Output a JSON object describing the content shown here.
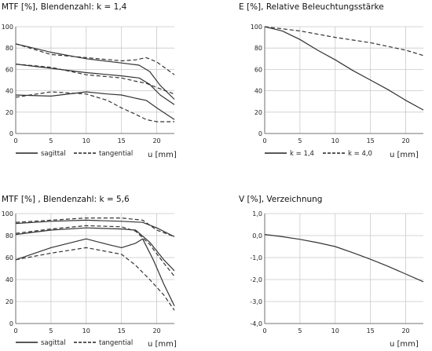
{
  "chart_data": [
    {
      "type": "line",
      "title": "MTF [%], Blendenzahl: k = 1,4",
      "xlabel": "u [mm]",
      "xlim": [
        0,
        22.5
      ],
      "ylim": [
        0,
        100
      ],
      "xticks": [
        "0",
        "5",
        "10",
        "15",
        "20"
      ],
      "yticks": [
        "0",
        "20",
        "40",
        "60",
        "80",
        "100"
      ],
      "legend": [
        {
          "label": "sagittal",
          "style": "solid"
        },
        {
          "label": "tangential",
          "style": "dashed"
        }
      ],
      "series": [
        {
          "style": "solid",
          "x": [
            0,
            5,
            10,
            15,
            17.5,
            19,
            20.5,
            22.5
          ],
          "y": [
            84,
            76,
            70,
            66,
            64,
            58,
            45,
            32
          ]
        },
        {
          "style": "dashed",
          "x": [
            0,
            5,
            10,
            15,
            17,
            18.5,
            20,
            22.5
          ],
          "y": [
            84,
            74,
            71,
            68,
            69,
            71,
            67,
            55
          ]
        },
        {
          "style": "solid",
          "x": [
            0,
            5,
            10,
            15,
            17.5,
            19,
            20.5,
            22.5
          ],
          "y": [
            65,
            61,
            57,
            54,
            52,
            46,
            36,
            27
          ]
        },
        {
          "style": "dashed",
          "x": [
            0,
            5,
            10,
            15,
            17,
            18.5,
            20,
            22.5
          ],
          "y": [
            65,
            62,
            55,
            52,
            49,
            47,
            43,
            37
          ]
        },
        {
          "style": "solid",
          "x": [
            0,
            5,
            10,
            13,
            15,
            17,
            18.5,
            20,
            22.5
          ],
          "y": [
            36,
            35,
            39,
            37,
            36,
            33,
            31,
            24,
            13
          ]
        },
        {
          "style": "dashed",
          "x": [
            0,
            5,
            10,
            13,
            15,
            17,
            18.5,
            20,
            22.5
          ],
          "y": [
            34,
            39,
            37,
            31,
            24,
            18,
            13,
            11,
            11
          ]
        }
      ]
    },
    {
      "type": "line",
      "title": "E [%], Relative Beleuchtungsstärke",
      "xlabel": "u [mm]",
      "xlim": [
        0,
        22.5
      ],
      "ylim": [
        0,
        100
      ],
      "xticks": [
        "0",
        "5",
        "10",
        "15",
        "20"
      ],
      "yticks": [
        "0",
        "20",
        "40",
        "60",
        "80",
        "100"
      ],
      "legend": [
        {
          "label": "k = 1,4",
          "style": "solid"
        },
        {
          "label": "k = 4,0",
          "style": "dashed"
        }
      ],
      "series": [
        {
          "style": "solid",
          "x": [
            0,
            2.5,
            5,
            7.5,
            10,
            12.5,
            15,
            17.5,
            20,
            22.5
          ],
          "y": [
            100,
            96,
            88,
            78,
            69,
            59,
            50,
            41,
            31,
            22
          ]
        },
        {
          "style": "dashed",
          "x": [
            0,
            5,
            10,
            15,
            20,
            22.5
          ],
          "y": [
            100,
            96,
            90,
            85,
            78,
            73
          ]
        }
      ]
    },
    {
      "type": "line",
      "title": "MTF [%] , Blendenzahl: k = 5,6",
      "xlabel": "u [mm]",
      "xlim": [
        0,
        22.5
      ],
      "ylim": [
        0,
        100
      ],
      "xticks": [
        "0",
        "5",
        "10",
        "15",
        "20"
      ],
      "yticks": [
        "0",
        "20",
        "40",
        "60",
        "80",
        "100"
      ],
      "legend": [
        {
          "label": "sagittal",
          "style": "solid"
        },
        {
          "label": "tangential",
          "style": "dashed"
        }
      ],
      "series": [
        {
          "style": "solid",
          "x": [
            0,
            5,
            10,
            15,
            18,
            20,
            22.5
          ],
          "y": [
            91,
            93,
            94,
            93,
            92,
            87,
            79
          ]
        },
        {
          "style": "dashed",
          "x": [
            0,
            5,
            10,
            15,
            18,
            20,
            22.5
          ],
          "y": [
            92,
            94,
            96,
            96,
            94,
            85,
            79
          ]
        },
        {
          "style": "solid",
          "x": [
            0,
            5,
            10,
            15,
            17,
            19,
            21,
            22.5
          ],
          "y": [
            81,
            85,
            87,
            86,
            85,
            74,
            58,
            48
          ]
        },
        {
          "style": "dashed",
          "x": [
            0,
            5,
            10,
            15,
            17,
            19,
            21,
            22.5
          ],
          "y": [
            82,
            86,
            89,
            88,
            84,
            72,
            55,
            43
          ]
        },
        {
          "style": "solid",
          "x": [
            0,
            5,
            10,
            13,
            15,
            17,
            18,
            19.5,
            21,
            22.5
          ],
          "y": [
            58,
            69,
            77,
            72,
            69,
            73,
            77,
            58,
            36,
            16
          ]
        },
        {
          "style": "dashed",
          "x": [
            0,
            5,
            10,
            15,
            17,
            19,
            21,
            22.5
          ],
          "y": [
            58,
            64,
            69,
            63,
            53,
            40,
            26,
            12
          ]
        }
      ]
    },
    {
      "type": "line",
      "title": "V [%], Verzeichnung",
      "xlabel": "u [mm]",
      "xlim": [
        0,
        22.5
      ],
      "ylim": [
        -4,
        1
      ],
      "xticks": [
        "0",
        "5",
        "10",
        "15",
        "20"
      ],
      "yticks": [
        "-4,0",
        "-3,0",
        "-2,0",
        "-1,0",
        "0,0",
        "1,0"
      ],
      "series": [
        {
          "style": "solid",
          "x": [
            0,
            2.5,
            5,
            7.5,
            10,
            12.5,
            15,
            17.5,
            20,
            22.5
          ],
          "y": [
            0.05,
            -0.05,
            -0.17,
            -0.32,
            -0.5,
            -0.78,
            -1.08,
            -1.4,
            -1.75,
            -2.1
          ]
        }
      ]
    }
  ]
}
